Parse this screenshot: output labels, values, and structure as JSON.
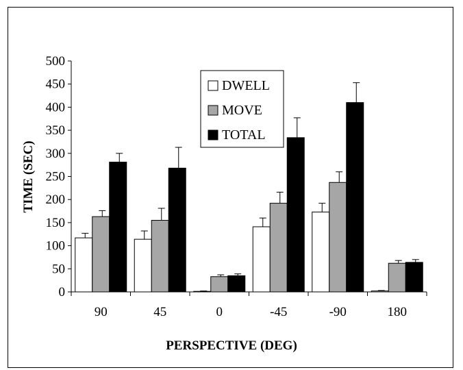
{
  "chart_data": {
    "type": "bar",
    "title": "",
    "xlabel": "PERSPECTIVE (DEG)",
    "ylabel": "TIME (SEC)",
    "categories": [
      "90",
      "45",
      "0",
      "-45",
      "-90",
      "180"
    ],
    "ylim": [
      0,
      500
    ],
    "yticks": [
      "0",
      "50",
      "100",
      "150",
      "200",
      "250",
      "300",
      "350",
      "400",
      "450",
      "500"
    ],
    "grid": false,
    "legend_position": "top-center",
    "series": [
      {
        "name": "DWELL",
        "color": "#ffffff",
        "values": [
          117,
          114,
          1,
          141,
          173,
          2
        ],
        "errors": [
          10,
          18,
          1,
          19,
          19,
          1
        ]
      },
      {
        "name": "MOVE",
        "color": "#a6a6a6",
        "values": [
          163,
          155,
          33,
          192,
          237,
          62
        ],
        "errors": [
          13,
          26,
          4,
          24,
          23,
          6
        ]
      },
      {
        "name": "TOTAL",
        "color": "#000000",
        "values": [
          281,
          268,
          35,
          334,
          410,
          64
        ],
        "errors": [
          19,
          45,
          4,
          43,
          43,
          6
        ]
      }
    ]
  }
}
